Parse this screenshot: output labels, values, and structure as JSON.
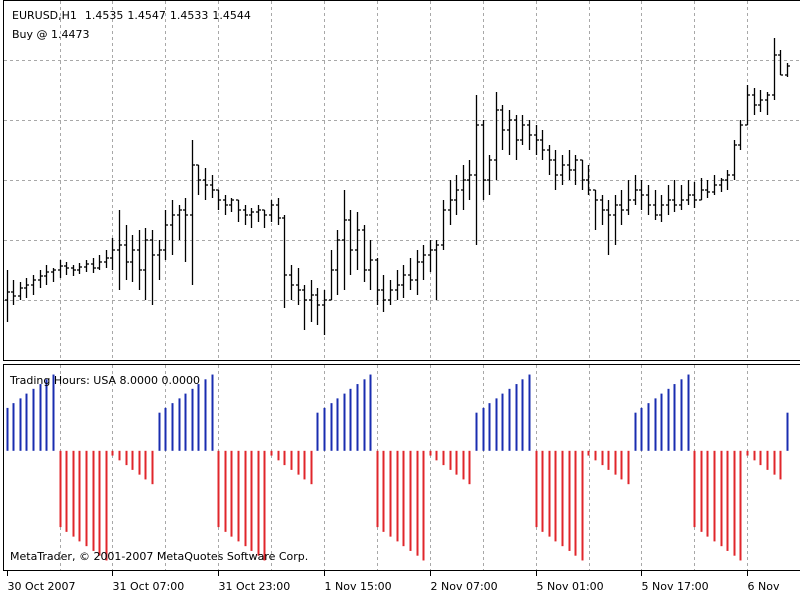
{
  "chart_data": [
    {
      "type": "ohlc",
      "title": "EURUSD,H1",
      "annotation": "Buy @ 1.4473",
      "color": "#000000",
      "grid": true,
      "xlim": [
        -1,
        120
      ],
      "ylim": [
        1.425,
        1.461
      ],
      "yticks": [
        1.455,
        1.449,
        1.443,
        1.437,
        1.431
      ],
      "xticks": [
        {
          "value": 0,
          "label": "30 Oct 2007"
        },
        {
          "value": 16,
          "label": "31 Oct 07:00"
        },
        {
          "value": 32,
          "label": "31 Oct 23:00"
        },
        {
          "value": 48,
          "label": "1 Nov 15:00"
        },
        {
          "value": 64,
          "label": "2 Nov 07:00"
        },
        {
          "value": 80,
          "label": "5 Nov 01:00"
        },
        {
          "value": 96,
          "label": "5 Nov 17:00"
        },
        {
          "value": 112,
          "label": "6 Nov"
        }
      ],
      "open": [
        1.431,
        1.4318,
        1.4314,
        1.4322,
        1.4325,
        1.433,
        1.4334,
        1.4338,
        1.434,
        1.4344,
        1.4342,
        1.434,
        1.4343,
        1.4346,
        1.4342,
        1.4348,
        1.4352,
        1.436,
        1.4365,
        1.4348,
        1.436,
        1.434,
        1.437,
        1.4355,
        1.436,
        1.4385,
        1.4395,
        1.44,
        1.4395,
        1.4445,
        1.443,
        1.4425,
        1.442,
        1.441,
        1.4405,
        1.441,
        1.44,
        1.4395,
        1.4398,
        1.44,
        1.4395,
        1.4405,
        1.4392,
        1.4335,
        1.4325,
        1.432,
        1.431,
        1.4315,
        1.4305,
        1.431,
        1.434,
        1.437,
        1.439,
        1.436,
        1.438,
        1.434,
        1.435,
        1.432,
        1.431,
        1.432,
        1.4325,
        1.4335,
        1.433,
        1.4348,
        1.4355,
        1.436,
        1.4365,
        1.44,
        1.441,
        1.442,
        1.443,
        1.4435,
        1.4485,
        1.443,
        1.445,
        1.45,
        1.448,
        1.449,
        1.447,
        1.4485,
        1.4475,
        1.447,
        1.446,
        1.445,
        1.4435,
        1.4445,
        1.444,
        1.445,
        1.443,
        1.442,
        1.441,
        1.44,
        1.4395,
        1.4405,
        1.44,
        1.441,
        1.442,
        1.4415,
        1.4405,
        1.4395,
        1.4405,
        1.441,
        1.4405,
        1.441,
        1.4415,
        1.441,
        1.442,
        1.4418,
        1.4425,
        1.443,
        1.4435,
        1.4465,
        1.4485,
        1.4515,
        1.4505,
        1.451,
        1.4515,
        1.4555,
        1.4535
      ],
      "high": [
        1.434,
        1.433,
        1.4328,
        1.4332,
        1.4335,
        1.434,
        1.4345,
        1.4342,
        1.435,
        1.4348,
        1.4345,
        1.4347,
        1.435,
        1.4352,
        1.4355,
        1.436,
        1.4372,
        1.44,
        1.4385,
        1.4375,
        1.438,
        1.4382,
        1.438,
        1.437,
        1.44,
        1.441,
        1.4405,
        1.4412,
        1.447,
        1.4445,
        1.4442,
        1.4435,
        1.442,
        1.4415,
        1.4412,
        1.441,
        1.4405,
        1.4402,
        1.4405,
        1.44,
        1.441,
        1.4412,
        1.4395,
        1.4345,
        1.4342,
        1.4325,
        1.433,
        1.4322,
        1.432,
        1.436,
        1.438,
        1.442,
        1.44,
        1.4398,
        1.4385,
        1.437,
        1.4352,
        1.4335,
        1.433,
        1.434,
        1.4345,
        1.4352,
        1.436,
        1.4365,
        1.437,
        1.437,
        1.441,
        1.443,
        1.4435,
        1.4445,
        1.445,
        1.4515,
        1.449,
        1.4455,
        1.4518,
        1.4505,
        1.45,
        1.4495,
        1.4495,
        1.449,
        1.4485,
        1.448,
        1.4465,
        1.446,
        1.4455,
        1.446,
        1.4455,
        1.445,
        1.4445,
        1.442,
        1.4415,
        1.441,
        1.4415,
        1.442,
        1.443,
        1.4435,
        1.443,
        1.4425,
        1.442,
        1.4415,
        1.4425,
        1.443,
        1.4425,
        1.443,
        1.4428,
        1.4432,
        1.443,
        1.4435,
        1.4432,
        1.444,
        1.447,
        1.449,
        1.4525,
        1.4522,
        1.452,
        1.4518,
        1.4572,
        1.456,
        1.4547
      ],
      "low": [
        1.4288,
        1.4305,
        1.431,
        1.4312,
        1.4315,
        1.4322,
        1.4325,
        1.4328,
        1.4332,
        1.4335,
        1.4334,
        1.4336,
        1.4338,
        1.4337,
        1.434,
        1.4342,
        1.434,
        1.432,
        1.433,
        1.4328,
        1.432,
        1.431,
        1.4305,
        1.433,
        1.435,
        1.4355,
        1.437,
        1.4348,
        1.4325,
        1.4415,
        1.441,
        1.4412,
        1.44,
        1.4395,
        1.4398,
        1.4388,
        1.4385,
        1.4382,
        1.4388,
        1.4382,
        1.4388,
        1.4385,
        1.4302,
        1.431,
        1.4305,
        1.428,
        1.4288,
        1.4285,
        1.4275,
        1.431,
        1.4315,
        1.432,
        1.4335,
        1.434,
        1.4328,
        1.432,
        1.4305,
        1.4298,
        1.4305,
        1.431,
        1.4312,
        1.432,
        1.4315,
        1.433,
        1.4338,
        1.431,
        1.436,
        1.4385,
        1.4395,
        1.44,
        1.441,
        1.4365,
        1.441,
        1.4415,
        1.443,
        1.446,
        1.4455,
        1.445,
        1.4465,
        1.446,
        1.4455,
        1.445,
        1.4435,
        1.442,
        1.4425,
        1.443,
        1.4425,
        1.442,
        1.4415,
        1.438,
        1.4385,
        1.4355,
        1.4365,
        1.4385,
        1.4395,
        1.4405,
        1.44,
        1.4395,
        1.439,
        1.4388,
        1.4395,
        1.4398,
        1.44,
        1.4405,
        1.4402,
        1.441,
        1.4412,
        1.4415,
        1.4418,
        1.442,
        1.443,
        1.446,
        1.4485,
        1.4495,
        1.4498,
        1.4495,
        1.451,
        1.4535,
        1.4533
      ],
      "close": [
        1.4318,
        1.4314,
        1.4322,
        1.4325,
        1.433,
        1.4334,
        1.4338,
        1.434,
        1.4344,
        1.4342,
        1.434,
        1.4343,
        1.4346,
        1.4342,
        1.4348,
        1.4352,
        1.436,
        1.4365,
        1.4348,
        1.436,
        1.434,
        1.437,
        1.4355,
        1.436,
        1.4385,
        1.4395,
        1.44,
        1.4395,
        1.4445,
        1.443,
        1.4425,
        1.442,
        1.441,
        1.4405,
        1.441,
        1.44,
        1.4395,
        1.4398,
        1.44,
        1.4395,
        1.4405,
        1.4392,
        1.4335,
        1.4325,
        1.432,
        1.431,
        1.4315,
        1.4305,
        1.431,
        1.434,
        1.437,
        1.439,
        1.436,
        1.438,
        1.434,
        1.435,
        1.432,
        1.431,
        1.432,
        1.4325,
        1.4335,
        1.433,
        1.4348,
        1.4355,
        1.436,
        1.4365,
        1.44,
        1.441,
        1.442,
        1.443,
        1.4435,
        1.4485,
        1.443,
        1.445,
        1.45,
        1.448,
        1.449,
        1.447,
        1.4485,
        1.4475,
        1.447,
        1.446,
        1.445,
        1.4435,
        1.4445,
        1.444,
        1.445,
        1.443,
        1.442,
        1.441,
        1.44,
        1.4395,
        1.4405,
        1.44,
        1.441,
        1.442,
        1.4415,
        1.4405,
        1.4395,
        1.4405,
        1.441,
        1.4405,
        1.441,
        1.4415,
        1.441,
        1.442,
        1.4418,
        1.4425,
        1.443,
        1.4435,
        1.4465,
        1.4485,
        1.4515,
        1.4505,
        1.451,
        1.4515,
        1.4555,
        1.4535,
        1.4544
      ]
    },
    {
      "type": "bar",
      "title": "Trading Hours: USA 8.0000 0.0000",
      "annotation": "MetaTrader, © 2001-2007 MetaQuotes Software Corp.",
      "positive_color": "#1a2db0",
      "negative_color": "#e0262b",
      "xlim": [
        -1,
        120
      ],
      "ylim": [
        -12.5,
        9
      ],
      "values": [
        4.5,
        5,
        5.5,
        6,
        6.5,
        7,
        7.5,
        8,
        -8,
        -8.5,
        -9,
        -9.5,
        -10,
        -10.5,
        -11,
        -11.5,
        -0.5,
        -1,
        -1.5,
        -2,
        -2.5,
        -3,
        -3.5,
        4,
        4.5,
        5,
        5.5,
        6,
        6.5,
        7,
        7.5,
        8,
        -8,
        -8.5,
        -9,
        -9.5,
        -10,
        -10.5,
        -11,
        -11.5,
        -0.5,
        -1,
        -1.5,
        -2,
        -2.5,
        -3,
        -3.5,
        4,
        4.5,
        5,
        5.5,
        6,
        6.5,
        7,
        7.5,
        8,
        -8,
        -8.5,
        -9,
        -9.5,
        -10,
        -10.5,
        -11,
        -11.5,
        -0.5,
        -1,
        -1.5,
        -2,
        -2.5,
        -3,
        -3.5,
        4,
        4.5,
        5,
        5.5,
        6,
        6.5,
        7,
        7.5,
        8,
        -8,
        -8.5,
        -9,
        -9.5,
        -10,
        -10.5,
        -11,
        -11.5,
        -0.5,
        -1,
        -1.5,
        -2,
        -2.5,
        -3,
        -3.5,
        4,
        4.5,
        5,
        5.5,
        6,
        6.5,
        7,
        7.5,
        8,
        -8,
        -8.5,
        -9,
        -9.5,
        -10,
        -10.5,
        -11,
        -11.5,
        -0.5,
        -1,
        -1.5,
        -2,
        -2.5,
        -3,
        4
      ]
    }
  ]
}
